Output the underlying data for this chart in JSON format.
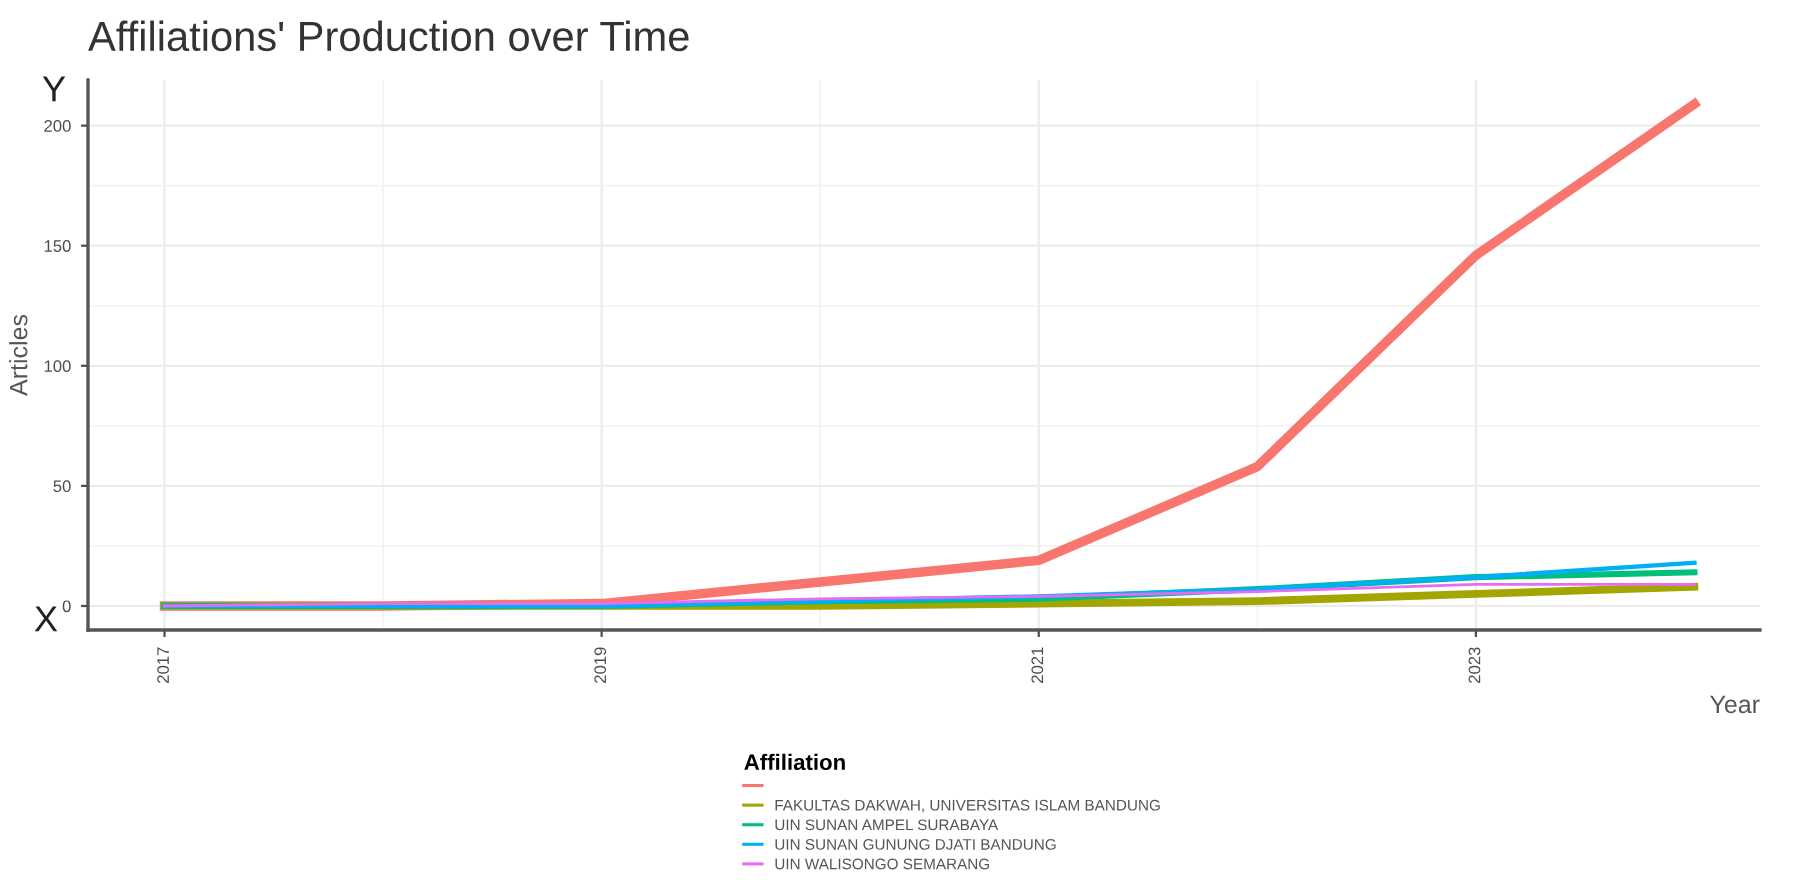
{
  "chart_data": {
    "type": "line",
    "title": "Affiliations' Production over Time",
    "xlabel": "Year",
    "ylabel": "Articles",
    "legend_title": "Affiliation",
    "x": [
      2017,
      2018,
      2019,
      2020,
      2021,
      2022,
      2023,
      2024
    ],
    "series": [
      {
        "color": "#f8766d",
        "values": [
          0,
          0,
          1,
          10,
          19,
          58,
          146,
          209
        ]
      },
      {
        "name": "FAKULTAS DAKWAH, UNIVERSITAS ISLAM BANDUNG",
        "color": "#a3a500",
        "values": [
          0,
          0,
          0,
          0,
          1,
          2,
          5,
          8
        ]
      },
      {
        "name": "UIN SUNAN AMPEL SURABAYA",
        "color": "#00bf7d",
        "values": [
          0,
          0,
          0,
          2,
          3,
          7,
          12,
          14
        ]
      },
      {
        "name": "UIN SUNAN GUNUNG DJATI BANDUNG",
        "color": "#00b0f6",
        "values": [
          0,
          0,
          0,
          2,
          4,
          7,
          12,
          18
        ]
      },
      {
        "name": "UIN WALISONGO SEMARANG",
        "color": "#e76bf3",
        "values": [
          0,
          1,
          1,
          3,
          4,
          6,
          9,
          9
        ]
      }
    ],
    "xlim": [
      2016.65,
      2024.3
    ],
    "ylim": [
      -10,
      219
    ],
    "xticks": [
      2017,
      2019,
      2021,
      2023
    ],
    "yticks": [
      0,
      50,
      100,
      150,
      200
    ],
    "annotations": [
      "Y",
      "X"
    ],
    "grid": true,
    "legend": "bottom",
    "line_style": "solid",
    "marker": "none"
  }
}
